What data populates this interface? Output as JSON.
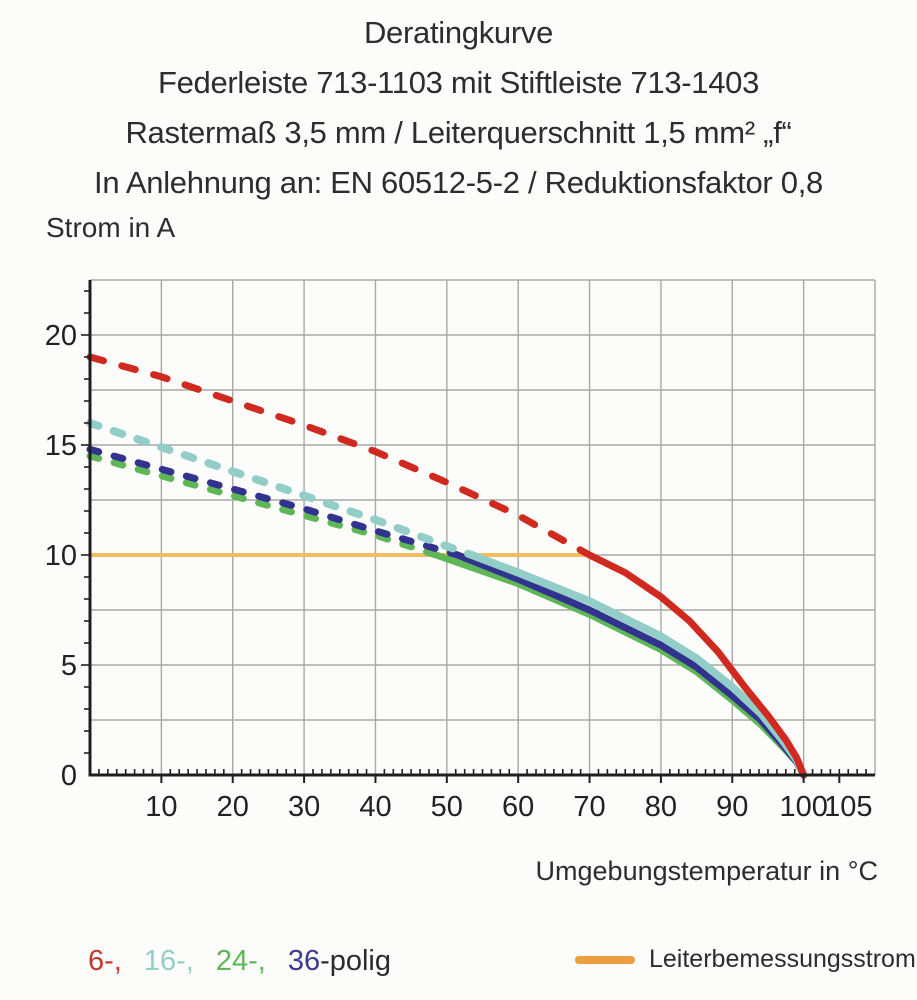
{
  "title": {
    "line1": "Deratingkurve",
    "line2": "Federleiste 713-1103 mit Stiftleiste 713-1403",
    "line3": "Rastermaß 3,5 mm / Leiterquerschnitt 1,5 mm² „f“",
    "line4": "In Anlehnung an: EN 60512-5-2 / Reduktionsfaktor 0,8"
  },
  "legend": {
    "pole_items": [
      {
        "label": "6-,",
        "color": "#c8372c"
      },
      {
        "label": "16-,",
        "color": "#96cdc7"
      },
      {
        "label": "24-,",
        "color": "#5fb658"
      },
      {
        "label": "36",
        "color": "#3b3b90"
      }
    ],
    "suffix_label": "-polig",
    "suffix_color": "#2b2b30",
    "rated_current_label": "Leiterbemessungsstrom",
    "rated_current_color": "#ef9d3e"
  },
  "colors": {
    "grid": "#a8a8a8",
    "axis": "#1f1f23",
    "tick_text": "#222226",
    "background": "#fcfcfa"
  },
  "chart_data": {
    "type": "line",
    "title": "Deratingkurve",
    "x_label": "Umgebungstemperatur in °C",
    "y_label": "Strom in A",
    "x_range": [
      0,
      110
    ],
    "y_range": [
      0,
      22.5
    ],
    "grid": true,
    "x_grid_step": 10,
    "y_grid_step": 2.5,
    "x_minor_tick_step": 1.25,
    "y_minor_tick_step": 1,
    "x_ticks": [
      10,
      20,
      30,
      40,
      50,
      60,
      70,
      80,
      90,
      100,
      105
    ],
    "y_ticks": [
      0,
      5,
      10,
      15,
      20
    ],
    "legend_position": "bottom",
    "rated_line": {
      "name": "Leiterbemessungsstrom",
      "value": 10,
      "x_start": 0,
      "x_end": 70,
      "color": "#f2bd5e",
      "width": 4
    },
    "series": [
      {
        "name": "6-polig",
        "color": "#d02a20",
        "width": 7,
        "dash": [
          14,
          19
        ],
        "dashed_until": 70,
        "points_dashed": [
          [
            0,
            19.0
          ],
          [
            10,
            18.1
          ],
          [
            20,
            17.0
          ],
          [
            30,
            15.9
          ],
          [
            40,
            14.7
          ],
          [
            50,
            13.3
          ],
          [
            60,
            11.8
          ],
          [
            65,
            10.9
          ],
          [
            70,
            10.0
          ]
        ],
        "points_solid": [
          [
            70,
            10.0
          ],
          [
            75,
            9.2
          ],
          [
            80,
            8.1
          ],
          [
            84,
            7.0
          ],
          [
            88,
            5.6
          ],
          [
            92,
            3.9
          ],
          [
            95,
            2.7
          ],
          [
            97.5,
            1.6
          ],
          [
            99,
            0.8
          ],
          [
            100,
            0
          ]
        ]
      },
      {
        "name": "16-polig",
        "color": "#92cdc8",
        "width": 8,
        "dash": [
          9,
          16
        ],
        "dashed_until": 53.5,
        "points_dashed": [
          [
            0,
            16.0
          ],
          [
            10,
            14.9
          ],
          [
            20,
            13.8
          ],
          [
            30,
            12.7
          ],
          [
            40,
            11.6
          ],
          [
            50,
            10.4
          ],
          [
            53.5,
            10.0
          ]
        ],
        "points_solid": [
          [
            53.5,
            10.0
          ],
          [
            60,
            9.2
          ],
          [
            70,
            7.9
          ],
          [
            80,
            6.3
          ],
          [
            85,
            5.3
          ],
          [
            90,
            4.0
          ],
          [
            94,
            2.8
          ],
          [
            97,
            1.6
          ],
          [
            99,
            0.7
          ],
          [
            100,
            0
          ]
        ]
      },
      {
        "name": "24-polig",
        "color": "#5eb657",
        "width": 7,
        "dash": [
          9,
          16
        ],
        "dashed_until": 48.5,
        "points_dashed": [
          [
            0,
            14.5
          ],
          [
            10,
            13.6
          ],
          [
            20,
            12.7
          ],
          [
            30,
            11.8
          ],
          [
            40,
            10.9
          ],
          [
            48.5,
            10.0
          ]
        ],
        "points_solid": [
          [
            48.5,
            10.0
          ],
          [
            60,
            8.7
          ],
          [
            70,
            7.3
          ],
          [
            80,
            5.7
          ],
          [
            85,
            4.7
          ],
          [
            90,
            3.4
          ],
          [
            94,
            2.3
          ],
          [
            97,
            1.3
          ],
          [
            99,
            0.6
          ],
          [
            100,
            0
          ]
        ]
      },
      {
        "name": "36-polig",
        "color": "#32328f",
        "width": 7,
        "dash": [
          9,
          16
        ],
        "dashed_until": 51.5,
        "points_dashed": [
          [
            0,
            14.8
          ],
          [
            10,
            13.9
          ],
          [
            20,
            13.0
          ],
          [
            30,
            12.1
          ],
          [
            40,
            11.1
          ],
          [
            51.5,
            10.0
          ]
        ],
        "points_solid": [
          [
            51.5,
            10.0
          ],
          [
            60,
            8.9
          ],
          [
            70,
            7.5
          ],
          [
            80,
            5.9
          ],
          [
            85,
            4.9
          ],
          [
            90,
            3.6
          ],
          [
            94,
            2.5
          ],
          [
            97,
            1.4
          ],
          [
            99,
            0.6
          ],
          [
            100,
            0
          ]
        ]
      }
    ]
  }
}
